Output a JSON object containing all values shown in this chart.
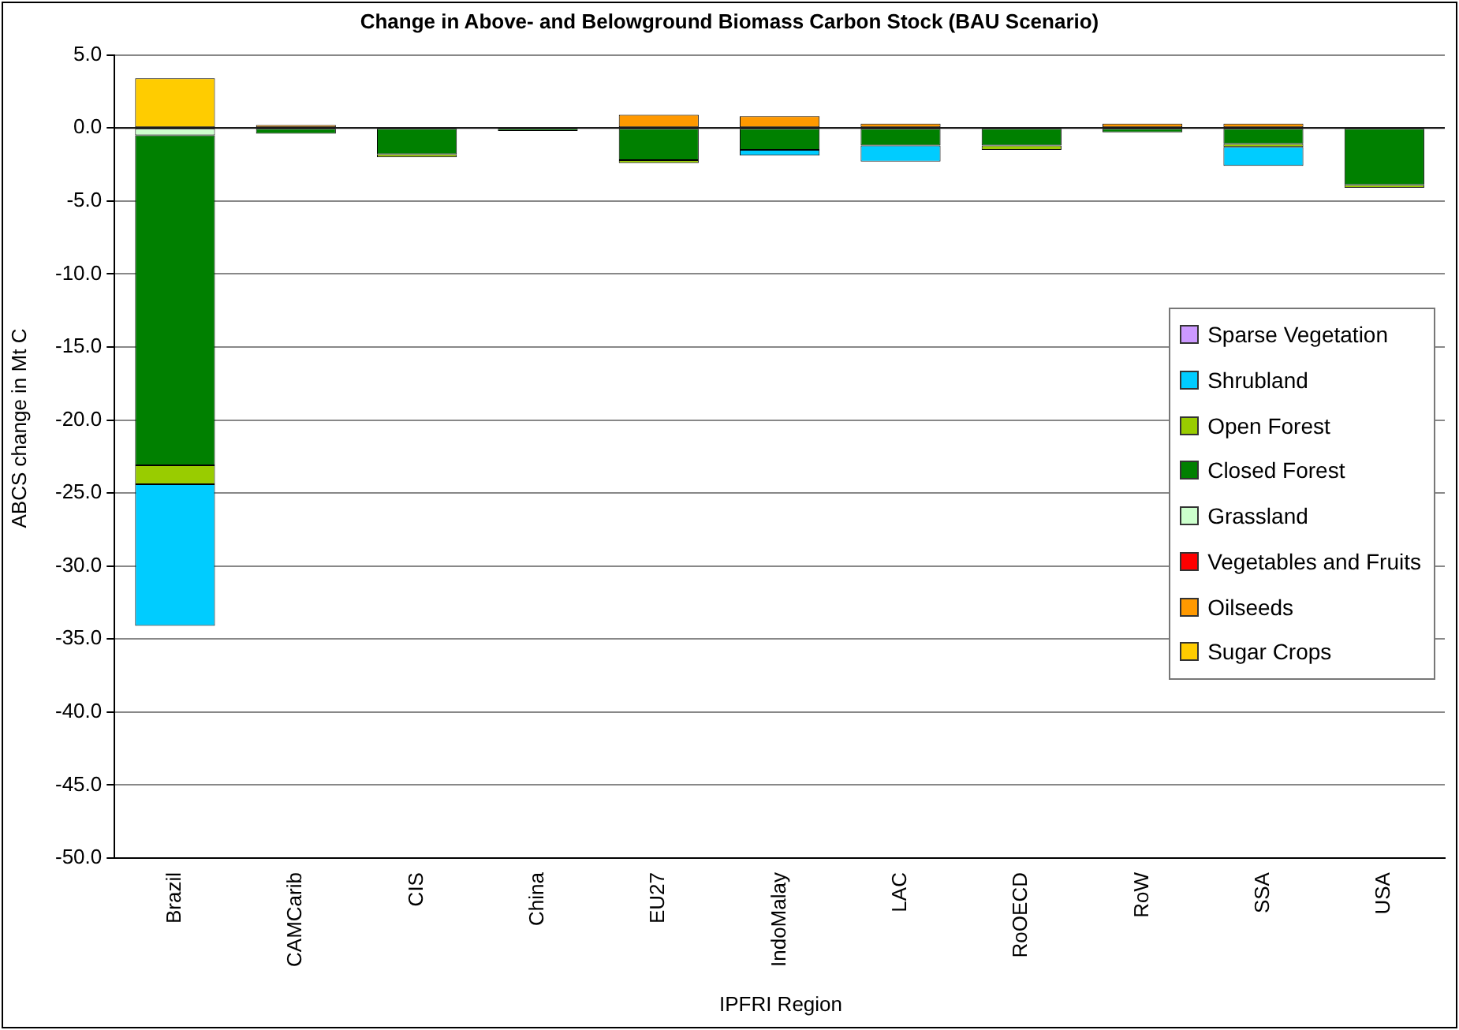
{
  "chart_data": {
    "type": "bar",
    "stacked": true,
    "title": "Change in Above- and Belowground Biomass Carbon Stock (BAU Scenario)",
    "xlabel": "IPFRI Region",
    "ylabel": "ABCS change in Mt C",
    "categories": [
      "Brazil",
      "CAMCarib",
      "CIS",
      "China",
      "EU27",
      "IndoMalay",
      "LAC",
      "RoOECD",
      "RoW",
      "SSA",
      "USA"
    ],
    "series": [
      {
        "name": "Sugar Crops",
        "color": "#ffcc00",
        "values": [
          3.4,
          null,
          null,
          null,
          null,
          null,
          null,
          null,
          null,
          null,
          null
        ]
      },
      {
        "name": "Oilseeds",
        "color": "#ff9900",
        "values": [
          null,
          0.2,
          null,
          null,
          0.9,
          0.8,
          0.3,
          null,
          0.3,
          0.3,
          null
        ]
      },
      {
        "name": "Vegetables and Fruits",
        "color": "#ff0000",
        "values": [
          null,
          null,
          null,
          null,
          null,
          null,
          null,
          null,
          null,
          null,
          null
        ]
      },
      {
        "name": "Grassland",
        "color": "#ccffcc",
        "values": [
          -0.5,
          null,
          null,
          null,
          null,
          null,
          null,
          null,
          null,
          null,
          null
        ]
      },
      {
        "name": "Closed Forest",
        "color": "#008000",
        "values": [
          -22.6,
          -0.4,
          -1.8,
          -0.2,
          -2.2,
          -1.5,
          -1.2,
          -1.2,
          -0.3,
          -1.1,
          -3.9
        ]
      },
      {
        "name": "Open Forest",
        "color": "#99cc00",
        "values": [
          -1.3,
          null,
          -0.2,
          null,
          -0.2,
          null,
          null,
          -0.3,
          null,
          -0.2,
          -0.2
        ]
      },
      {
        "name": "Shrubland",
        "color": "#00ccff",
        "values": [
          -9.7,
          null,
          null,
          null,
          null,
          -0.4,
          -1.1,
          null,
          null,
          -1.3,
          null
        ]
      },
      {
        "name": "Sparse Vegetation",
        "color": "#cc99ff",
        "values": [
          null,
          null,
          null,
          null,
          null,
          null,
          null,
          null,
          null,
          null,
          null
        ]
      }
    ],
    "ylim": [
      -50,
      5
    ],
    "yticks": [
      {
        "value": -50,
        "label": "-50.0"
      },
      {
        "value": -45,
        "label": "-45.0"
      },
      {
        "value": -40,
        "label": "-40.0"
      },
      {
        "value": -35,
        "label": "-35.0"
      },
      {
        "value": -30,
        "label": "-30.0"
      },
      {
        "value": -25,
        "label": "-25.0"
      },
      {
        "value": -20,
        "label": "-20.0"
      },
      {
        "value": -15,
        "label": "-15.0"
      },
      {
        "value": -10,
        "label": "-10.0"
      },
      {
        "value": -5,
        "label": "-5.0"
      },
      {
        "value": 0,
        "label": "0.0"
      },
      {
        "value": 5,
        "label": "5.0"
      }
    ],
    "grid": "y",
    "legend": "right"
  }
}
